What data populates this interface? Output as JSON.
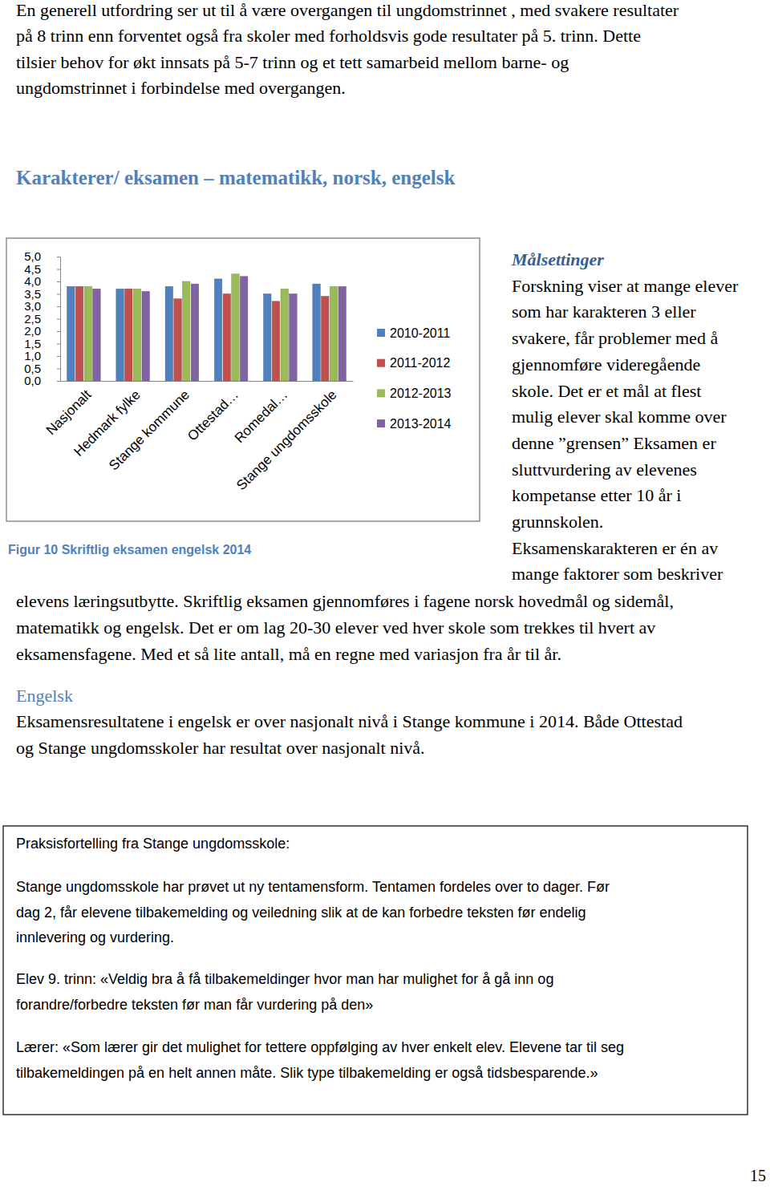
{
  "intro": {
    "lines": [
      "En generell utfordring ser ut til å være overgangen til ungdomstrinnet , med svakere resultater",
      "på 8 trinn enn forventet også fra skoler med forholdsvis gode resultater på 5. trinn. Dette",
      "tilsier behov for økt innsats på 5-7 trinn og et tett samarbeid mellom barne- og",
      "ungdomstrinnet i forbindelse med overgangen."
    ]
  },
  "chart_data": {
    "type": "bar",
    "title": "Karakterer/ eksamen – matematikk, norsk, engelsk",
    "categories": [
      "Nasjonalt",
      "Hedmark fylke",
      "Stange kommune",
      "Ottestad…",
      "Romedal…",
      "Stange ungdomsskole"
    ],
    "series": [
      {
        "name": "2010-2011",
        "color": "#4f81bd",
        "values": [
          3.8,
          3.7,
          3.8,
          4.1,
          3.5,
          3.9
        ]
      },
      {
        "name": "2011-2012",
        "color": "#c0504d",
        "values": [
          3.8,
          3.7,
          3.3,
          3.5,
          3.2,
          3.4
        ]
      },
      {
        "name": "2012-2013",
        "color": "#9bbb59",
        "values": [
          3.8,
          3.7,
          4.0,
          4.3,
          3.7,
          3.8
        ]
      },
      {
        "name": "2013-2014",
        "color": "#8064a2",
        "values": [
          3.7,
          3.6,
          3.9,
          4.2,
          3.5,
          3.8
        ]
      }
    ],
    "ylim": [
      0,
      5
    ],
    "yticks": [
      {
        "value": 0,
        "label": "0,0"
      },
      {
        "value": 0.5,
        "label": "0,5"
      },
      {
        "value": 1,
        "label": "1,0"
      },
      {
        "value": 1.5,
        "label": "1,5"
      },
      {
        "value": 2,
        "label": "2,0"
      },
      {
        "value": 2.5,
        "label": "2,5"
      },
      {
        "value": 3,
        "label": "3,0"
      },
      {
        "value": 3.5,
        "label": "3,5"
      },
      {
        "value": 4,
        "label": "4,0"
      },
      {
        "value": 4.5,
        "label": "4,5"
      },
      {
        "value": 5,
        "label": "5,0"
      }
    ],
    "grid": false,
    "legend": "right"
  },
  "caption": "Figur 10 Skriftlig eksamen engelsk 2014",
  "sidebar": {
    "title": "Målsettinger",
    "lines": [
      "Forskning viser at mange elever",
      "som har karakteren 3 eller",
      "svakere, får problemer med å",
      "gjennomføre videregående",
      "skole. Det er et mål at flest",
      "mulig elever skal komme over",
      "denne ”grensen” Eksamen er",
      "sluttvurdering av elevenes",
      "kompetanse etter 10 år i",
      "grunnskolen.",
      "Eksamenskarakteren er én av",
      "mange faktorer som beskriver"
    ],
    "continued_lines": [
      "elevens læringsutbytte. Skriftlig eksamen gjennomføres i fagene norsk hovedmål og sidemål,",
      "matematikk og engelsk. Det er om lag 20-30 elever ved hver skole som trekkes til hvert av",
      "eksamensfagene. Med et så lite antall, må en regne med variasjon fra år til år."
    ]
  },
  "section": {
    "title": "Engelsk",
    "lines": [
      "Eksamensresultatene i engelsk er over nasjonalt nivå i Stange kommune i 2014. Både Ottestad",
      "og Stange ungdomsskoler har resultat over nasjonalt nivå."
    ]
  },
  "box": {
    "title": "Praksisfortelling fra Stange ungdomsskole:",
    "paragraphs": [
      [
        "Stange ungdomsskole har prøvet ut ny tentamensform. Tentamen fordeles over to dager. Før",
        "dag 2, får elevene tilbakemelding og veiledning slik at de kan forbedre teksten før endelig",
        "innlevering og vurdering."
      ],
      [
        "Elev 9. trinn: «Veldig bra å få tilbakemeldinger hvor man har mulighet for å gå inn og",
        "forandre/forbedre teksten før man får vurdering på den»"
      ],
      [
        "Lærer: «Som lærer gir det mulighet for tettere oppfølging av hver enkelt elev. Elevene tar til seg",
        "tilbakemeldingen på en helt annen måte. Slik type tilbakemelding er også tidsbesparende.»"
      ]
    ]
  },
  "page_number": "15"
}
